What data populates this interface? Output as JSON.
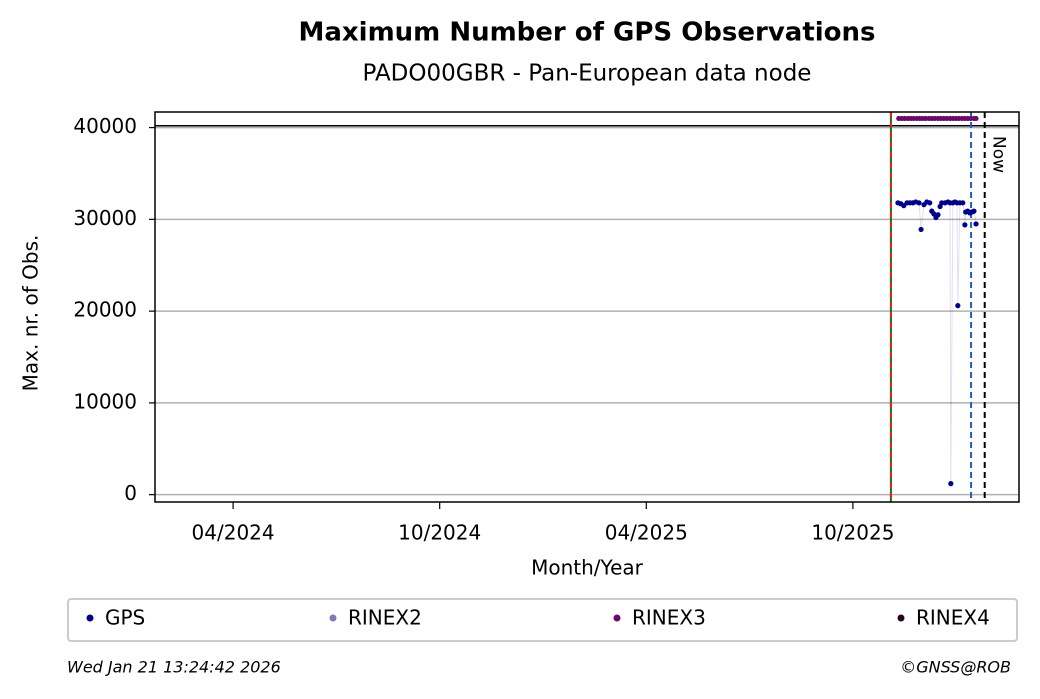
{
  "chart_data": {
    "type": "scatter",
    "title": "Maximum Number of GPS Observations",
    "subtitle": "PADO00GBR - Pan-European data node",
    "xlabel": "Month/Year",
    "ylabel": "Max. nr. of Obs.",
    "xlim": [
      2024.061,
      2026.152
    ],
    "ylim": [
      -800,
      41700
    ],
    "xticks": [
      {
        "value": 2024.25,
        "label": "04/2024"
      },
      {
        "value": 2024.75,
        "label": "10/2024"
      },
      {
        "value": 2025.25,
        "label": "04/2025"
      },
      {
        "value": 2025.75,
        "label": "10/2025"
      }
    ],
    "yticks": [
      0,
      10000,
      20000,
      30000,
      40000
    ],
    "grid": true,
    "legend": "bottom",
    "hline": {
      "y": 40200,
      "color": "#000000"
    },
    "vlines": [
      {
        "x": 2025.842,
        "color": "#008000",
        "style": "solid"
      },
      {
        "x": 2025.842,
        "color": "#d62728",
        "style": "dashed"
      },
      {
        "x": 2026.036,
        "color": "#1f5fbf",
        "style": "dashed"
      },
      {
        "x": 2026.069,
        "color": "#000000",
        "style": "dashed",
        "label": "Now"
      }
    ],
    "series": [
      {
        "name": "GPS",
        "color": "#00008b",
        "x": [
          2025.859,
          2025.866,
          2025.873,
          2025.881,
          2025.888,
          2025.895,
          2025.902,
          2025.91,
          2025.915,
          2025.922,
          2025.929,
          2025.936,
          2025.941,
          2025.946,
          2025.951,
          2025.956,
          2025.961,
          2025.965,
          2025.973,
          2025.98,
          2025.985,
          2025.987,
          2025.992,
          2025.997,
          2026.002,
          2026.004,
          2026.009,
          2026.016,
          2026.021,
          2026.023,
          2026.028,
          2026.033,
          2026.038,
          2026.043,
          2026.048
        ],
        "values": [
          31800,
          31700,
          31500,
          31800,
          31800,
          31800,
          31900,
          31800,
          28900,
          31600,
          31900,
          31800,
          30900,
          30600,
          30200,
          30500,
          31400,
          31800,
          31800,
          31900,
          31800,
          1200,
          31800,
          31900,
          31800,
          20600,
          31800,
          31800,
          29400,
          30800,
          30900,
          30700,
          30800,
          30900,
          29500
        ]
      },
      {
        "name": "RINEX2",
        "color": "#7b7bb8",
        "x": [],
        "values": []
      },
      {
        "name": "RINEX3",
        "color": "#6a0a6a",
        "x": [
          2025.861,
          2025.868,
          2025.875,
          2025.883,
          2025.89,
          2025.897,
          2025.905,
          2025.912,
          2025.919,
          2025.926,
          2025.934,
          2025.941,
          2025.948,
          2025.956,
          2025.963,
          2025.97,
          2025.977,
          2025.985,
          2025.992,
          2025.999,
          2026.006,
          2026.014,
          2026.021,
          2026.028,
          2026.035,
          2026.043,
          2026.048
        ],
        "values": [
          41000,
          41000,
          41000,
          41000,
          41000,
          41000,
          41000,
          41000,
          41000,
          41000,
          41000,
          41000,
          41000,
          41000,
          41000,
          41000,
          41000,
          41000,
          41000,
          41000,
          41000,
          41000,
          41000,
          41000,
          41000,
          41000,
          41000
        ]
      },
      {
        "name": "RINEX4",
        "color": "#2a0020",
        "x": [],
        "values": []
      }
    ]
  },
  "footer": {
    "timestamp": "Wed Jan 21 13:24:42 2026",
    "credit": "©GNSS@ROB"
  }
}
